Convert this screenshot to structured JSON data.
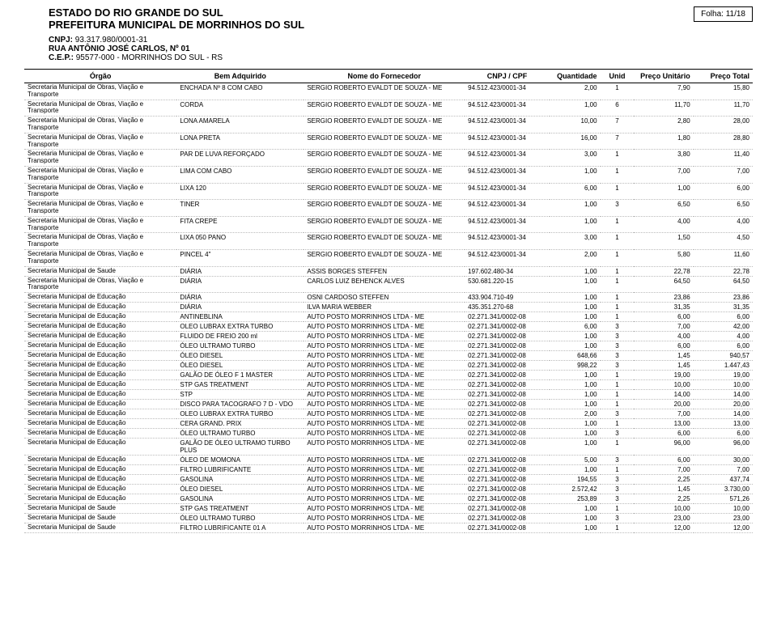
{
  "header": {
    "estado": "ESTADO DO RIO GRANDE DO SUL",
    "prefeitura": "PREFEITURA MUNICIPAL DE MORRINHOS DO SUL",
    "cnpj_label": "CNPJ:",
    "cnpj": "93.317.980/0001-31",
    "rua": "RUA ANTÔNIO JOSÉ CARLOS, Nº 01",
    "cep_label": "C.E.P.:",
    "cep": "95577-000",
    "municipio": " -  MORRINHOS DO SUL - RS",
    "folha_label": "Folha:",
    "folha": "11/18"
  },
  "columns": {
    "orgao": "Órgão",
    "bem": "Bem Adquirido",
    "fornecedor": "Nome do Fornecedor",
    "cnpj": "CNPJ / CPF",
    "qtd": "Quantidade",
    "unid": "Unid",
    "pu": "Preço Unitário",
    "pt": "Preço Total"
  },
  "orgaos": {
    "sovt": "Secretaria Municipal de Obras, Viação e Transporte",
    "saude": "Secretaria Municipal de Saude",
    "educ": "Secretaria Municipal de Educação"
  },
  "forn": {
    "sergio": "SERGIO ROBERTO EVALDT DE SOUZA - ME",
    "assis": "ASSIS BORGES STEFFEN",
    "carlos": "CARLOS LUIZ BEHENCK ALVES",
    "osni": "OSNI CARDOSO STEFFEN",
    "ilva": "ILVA MARIA WEBBER",
    "autoposto": "AUTO POSTO MORRINHOS LTDA - ME"
  },
  "cnpjs": {
    "sergio": "94.512.423/0001-34",
    "assis": "197.602.480-34",
    "carlos": "530.681.220-15",
    "osni": "433.904.710-49",
    "ilva": "435.351.270-68",
    "autoposto": "02.271.341/0002-08"
  },
  "rows": [
    {
      "orgao": "sovt",
      "bem": "ENCHADA Nº 8 COM CABO",
      "forn": "sergio",
      "cnpj": "sergio",
      "qtd": "2,00",
      "unid": "1",
      "pu": "7,90",
      "pt": "15,80"
    },
    {
      "orgao": "sovt",
      "bem": "CORDA",
      "forn": "sergio",
      "cnpj": "sergio",
      "qtd": "1,00",
      "unid": "6",
      "pu": "11,70",
      "pt": "11,70"
    },
    {
      "orgao": "sovt",
      "bem": "LONA AMARELA",
      "forn": "sergio",
      "cnpj": "sergio",
      "qtd": "10,00",
      "unid": "7",
      "pu": "2,80",
      "pt": "28,00"
    },
    {
      "orgao": "sovt",
      "bem": "LONA PRETA",
      "forn": "sergio",
      "cnpj": "sergio",
      "qtd": "16,00",
      "unid": "7",
      "pu": "1,80",
      "pt": "28,80"
    },
    {
      "orgao": "sovt",
      "bem": "PAR DE LUVA REFORÇADO",
      "forn": "sergio",
      "cnpj": "sergio",
      "qtd": "3,00",
      "unid": "1",
      "pu": "3,80",
      "pt": "11,40"
    },
    {
      "orgao": "sovt",
      "bem": "LIMA COM CABO",
      "forn": "sergio",
      "cnpj": "sergio",
      "qtd": "1,00",
      "unid": "1",
      "pu": "7,00",
      "pt": "7,00"
    },
    {
      "orgao": "sovt",
      "bem": "LIXA 120",
      "forn": "sergio",
      "cnpj": "sergio",
      "qtd": "6,00",
      "unid": "1",
      "pu": "1,00",
      "pt": "6,00"
    },
    {
      "orgao": "sovt",
      "bem": "TINER",
      "forn": "sergio",
      "cnpj": "sergio",
      "qtd": "1,00",
      "unid": "3",
      "pu": "6,50",
      "pt": "6,50"
    },
    {
      "orgao": "sovt",
      "bem": "FITA CREPE",
      "forn": "sergio",
      "cnpj": "sergio",
      "qtd": "1,00",
      "unid": "1",
      "pu": "4,00",
      "pt": "4,00"
    },
    {
      "orgao": "sovt",
      "bem": "LIXA 050 PANO",
      "forn": "sergio",
      "cnpj": "sergio",
      "qtd": "3,00",
      "unid": "1",
      "pu": "1,50",
      "pt": "4,50"
    },
    {
      "orgao": "sovt",
      "bem": "PINCEL 4\"",
      "forn": "sergio",
      "cnpj": "sergio",
      "qtd": "2,00",
      "unid": "1",
      "pu": "5,80",
      "pt": "11,60"
    },
    {
      "orgao": "saude",
      "bem": "DIÁRIA",
      "forn": "assis",
      "cnpj": "assis",
      "qtd": "1,00",
      "unid": "1",
      "pu": "22,78",
      "pt": "22,78"
    },
    {
      "orgao": "sovt",
      "bem": "DIÁRIA",
      "forn": "carlos",
      "cnpj": "carlos",
      "qtd": "1,00",
      "unid": "1",
      "pu": "64,50",
      "pt": "64,50"
    },
    {
      "orgao": "educ",
      "bem": "DIÁRIA",
      "forn": "osni",
      "cnpj": "osni",
      "qtd": "1,00",
      "unid": "1",
      "pu": "23,86",
      "pt": "23,86"
    },
    {
      "orgao": "educ",
      "bem": "DIÁRIA",
      "forn": "ilva",
      "cnpj": "ilva",
      "qtd": "1,00",
      "unid": "1",
      "pu": "31,35",
      "pt": "31,35"
    },
    {
      "orgao": "educ",
      "bem": "ANTINEBLINA",
      "forn": "autoposto",
      "cnpj": "autoposto",
      "qtd": "1,00",
      "unid": "1",
      "pu": "6,00",
      "pt": "6,00"
    },
    {
      "orgao": "educ",
      "bem": "OLEO LUBRAX EXTRA TURBO",
      "forn": "autoposto",
      "cnpj": "autoposto",
      "qtd": "6,00",
      "unid": "3",
      "pu": "7,00",
      "pt": "42,00"
    },
    {
      "orgao": "educ",
      "bem": "FLUIDO DE FREIO 200 ml",
      "forn": "autoposto",
      "cnpj": "autoposto",
      "qtd": "1,00",
      "unid": "3",
      "pu": "4,00",
      "pt": "4,00"
    },
    {
      "orgao": "educ",
      "bem": "ÓLEO ULTRAMO TURBO",
      "forn": "autoposto",
      "cnpj": "autoposto",
      "qtd": "1,00",
      "unid": "3",
      "pu": "6,00",
      "pt": "6,00"
    },
    {
      "orgao": "educ",
      "bem": "ÓLEO DIESEL",
      "forn": "autoposto",
      "cnpj": "autoposto",
      "qtd": "648,66",
      "unid": "3",
      "pu": "1,45",
      "pt": "940,57"
    },
    {
      "orgao": "educ",
      "bem": "ÓLEO DIESEL",
      "forn": "autoposto",
      "cnpj": "autoposto",
      "qtd": "998,22",
      "unid": "3",
      "pu": "1,45",
      "pt": "1.447,43"
    },
    {
      "orgao": "educ",
      "bem": "GALÃO DE ÓLEO F 1 MASTER",
      "forn": "autoposto",
      "cnpj": "autoposto",
      "qtd": "1,00",
      "unid": "1",
      "pu": "19,00",
      "pt": "19,00"
    },
    {
      "orgao": "educ",
      "bem": "STP GAS TREATMENT",
      "forn": "autoposto",
      "cnpj": "autoposto",
      "qtd": "1,00",
      "unid": "1",
      "pu": "10,00",
      "pt": "10,00"
    },
    {
      "orgao": "educ",
      "bem": "STP",
      "forn": "autoposto",
      "cnpj": "autoposto",
      "qtd": "1,00",
      "unid": "1",
      "pu": "14,00",
      "pt": "14,00"
    },
    {
      "orgao": "educ",
      "bem": "DISCO PARA TACOGRAFO 7 D - VDO",
      "forn": "autoposto",
      "cnpj": "autoposto",
      "qtd": "1,00",
      "unid": "1",
      "pu": "20,00",
      "pt": "20,00"
    },
    {
      "orgao": "educ",
      "bem": "OLEO LUBRAX EXTRA TURBO",
      "forn": "autoposto",
      "cnpj": "autoposto",
      "qtd": "2,00",
      "unid": "3",
      "pu": "7,00",
      "pt": "14,00"
    },
    {
      "orgao": "educ",
      "bem": "CERA GRAND. PRIX",
      "forn": "autoposto",
      "cnpj": "autoposto",
      "qtd": "1,00",
      "unid": "1",
      "pu": "13,00",
      "pt": "13,00"
    },
    {
      "orgao": "educ",
      "bem": "ÓLEO ULTRAMO TURBO",
      "forn": "autoposto",
      "cnpj": "autoposto",
      "qtd": "1,00",
      "unid": "3",
      "pu": "6,00",
      "pt": "6,00"
    },
    {
      "orgao": "educ",
      "bem": "GALÃO DE ÓLEO ULTRAMO TURBO PLUS",
      "forn": "autoposto",
      "cnpj": "autoposto",
      "qtd": "1,00",
      "unid": "1",
      "pu": "96,00",
      "pt": "96,00"
    },
    {
      "orgao": "educ",
      "bem": "ÓLEO DE MOMONA",
      "forn": "autoposto",
      "cnpj": "autoposto",
      "qtd": "5,00",
      "unid": "3",
      "pu": "6,00",
      "pt": "30,00"
    },
    {
      "orgao": "educ",
      "bem": "FILTRO LUBRIFICANTE",
      "forn": "autoposto",
      "cnpj": "autoposto",
      "qtd": "1,00",
      "unid": "1",
      "pu": "7,00",
      "pt": "7,00"
    },
    {
      "orgao": "educ",
      "bem": "GASOLINA",
      "forn": "autoposto",
      "cnpj": "autoposto",
      "qtd": "194,55",
      "unid": "3",
      "pu": "2,25",
      "pt": "437,74"
    },
    {
      "orgao": "educ",
      "bem": "ÓLEO DIESEL",
      "forn": "autoposto",
      "cnpj": "autoposto",
      "qtd": "2.572,42",
      "unid": "3",
      "pu": "1,45",
      "pt": "3.730,00"
    },
    {
      "orgao": "educ",
      "bem": "GASOLINA",
      "forn": "autoposto",
      "cnpj": "autoposto",
      "qtd": "253,89",
      "unid": "3",
      "pu": "2,25",
      "pt": "571,26"
    },
    {
      "orgao": "saude",
      "bem": "STP GAS TREATMENT",
      "forn": "autoposto",
      "cnpj": "autoposto",
      "qtd": "1,00",
      "unid": "1",
      "pu": "10,00",
      "pt": "10,00"
    },
    {
      "orgao": "saude",
      "bem": "ÓLEO ULTRAMO TURBO",
      "forn": "autoposto",
      "cnpj": "autoposto",
      "qtd": "1,00",
      "unid": "3",
      "pu": "23,00",
      "pt": "23,00"
    },
    {
      "orgao": "saude",
      "bem": "FILTRO LUBRIFICANTE 01 A",
      "forn": "autoposto",
      "cnpj": "autoposto",
      "qtd": "1,00",
      "unid": "1",
      "pu": "12,00",
      "pt": "12,00"
    }
  ],
  "styles": {
    "body_font_size": 9,
    "table_font_size": 8,
    "header_font_size": 13,
    "text_color": "#000000",
    "background": "#ffffff",
    "dotted_border": "#bbbbbb"
  }
}
